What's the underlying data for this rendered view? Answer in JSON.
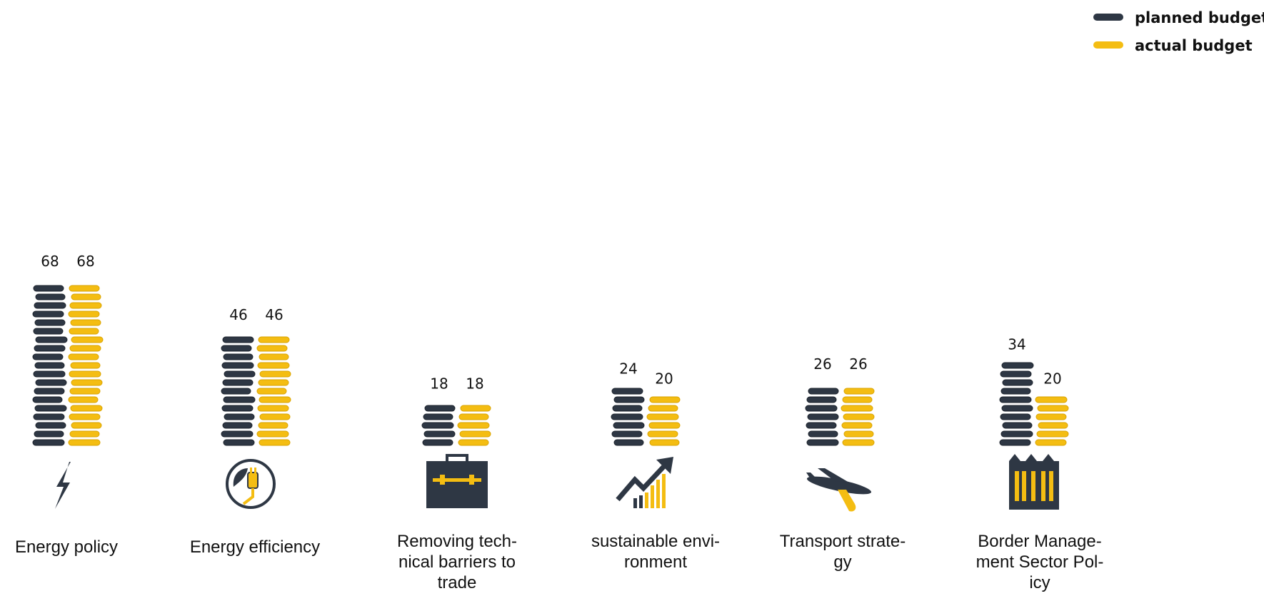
{
  "chart_data": {
    "type": "bar",
    "title": "",
    "xlabel": "",
    "ylabel": "",
    "ylim": [
      0,
      68
    ],
    "grid": false,
    "legend_position": "top-right",
    "categories": [
      "Energy policy",
      "Energy efficiency",
      "Removing technical barriers to trade",
      "sustainable environment",
      "Transport strategy",
      "Border Management Sector Policy"
    ],
    "category_label_lines": [
      [
        "Energy policy"
      ],
      [
        "Energy efficiency"
      ],
      [
        "Removing tech-",
        "nical barriers to",
        "trade"
      ],
      [
        "sustainable envi-",
        "ronment"
      ],
      [
        "Transport strate-",
        "gy"
      ],
      [
        "Border Manage-",
        "ment Sector Pol-",
        "icy"
      ]
    ],
    "icons": [
      "lightning-icon",
      "energy-efficiency-plug-icon",
      "briefcase-icon",
      "growth-chart-icon",
      "airplane-icon",
      "border-fence-icon"
    ],
    "series": [
      {
        "name": "planned budget",
        "color": "#2e3744",
        "values": [
          68,
          46,
          18,
          24,
          26,
          34
        ]
      },
      {
        "name": "actual budget",
        "color": "#f4bd12",
        "values": [
          68,
          46,
          18,
          20,
          26,
          20
        ]
      }
    ]
  }
}
